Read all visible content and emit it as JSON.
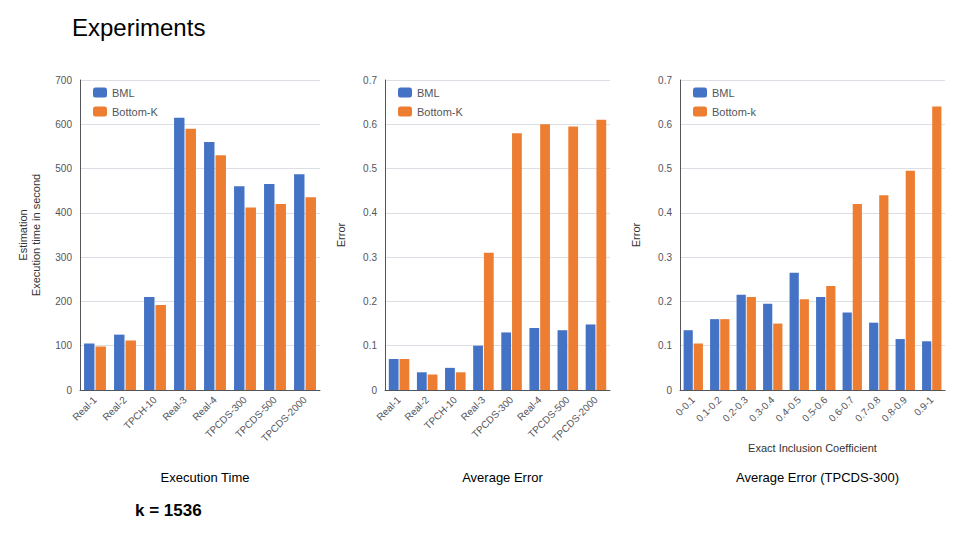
{
  "title": "Experiments",
  "chart_data": [
    {
      "type": "bar",
      "title": "Execution Time",
      "annotations": [
        "k = 1536"
      ],
      "categories": [
        "Real-1",
        "Real-2",
        "TPCH-10",
        "Real-3",
        "Real-4",
        "TPCDS-300",
        "TPCDS-500",
        "TPCDS-2000"
      ],
      "series": [
        {
          "name": "BML",
          "color": "#4472C4",
          "values": [
            105,
            125,
            210,
            615,
            560,
            460,
            465,
            487
          ]
        },
        {
          "name": "Bottom-K",
          "color": "#ED7D31",
          "values": [
            98,
            112,
            192,
            590,
            530,
            412,
            420,
            435
          ]
        }
      ],
      "ylabel": "Estimation\nExecution time in second",
      "ylim": [
        0,
        700
      ],
      "yticks": [
        0,
        100,
        200,
        300,
        400,
        500,
        600,
        700
      ],
      "grid": true,
      "legend": "upper left"
    },
    {
      "type": "bar",
      "title": "Average Error",
      "categories": [
        "Real-1",
        "Real-2",
        "TPCH-10",
        "Real-3",
        "TPCDS-300",
        "Real-4",
        "TPCDS-500",
        "TPCDS-2000"
      ],
      "series": [
        {
          "name": "BML",
          "color": "#4472C4",
          "values": [
            0.07,
            0.04,
            0.05,
            0.1,
            0.13,
            0.14,
            0.135,
            0.148
          ]
        },
        {
          "name": "Bottom-K",
          "color": "#ED7D31",
          "values": [
            0.07,
            0.035,
            0.04,
            0.31,
            0.58,
            0.6,
            0.595,
            0.61
          ]
        }
      ],
      "ylabel": "Error",
      "ylim": [
        0,
        0.7
      ],
      "yticks": [
        0,
        0.1,
        0.2,
        0.3,
        0.4,
        0.5,
        0.6,
        0.7
      ],
      "grid": true,
      "legend": "upper left"
    },
    {
      "type": "bar",
      "title": "Average Error (TPCDS-300)",
      "categories": [
        "0-0.1",
        "0.1-0.2",
        "0.2-0.3",
        "0.3-0.4",
        "0.4-0.5",
        "0.5-0.6",
        "0.6-0.7",
        "0.7-0.8",
        "0.8-0.9",
        "0.9-1"
      ],
      "series": [
        {
          "name": "BML",
          "color": "#4472C4",
          "values": [
            0.135,
            0.16,
            0.215,
            0.195,
            0.265,
            0.21,
            0.175,
            0.152,
            0.115,
            0.11
          ]
        },
        {
          "name": "Bottom-k",
          "color": "#ED7D31",
          "values": [
            0.105,
            0.16,
            0.21,
            0.15,
            0.205,
            0.235,
            0.42,
            0.44,
            0.495,
            0.64
          ]
        }
      ],
      "xlabel": "Exact Inclusion Coefficient",
      "ylabel": "Error",
      "ylim": [
        0,
        0.7
      ],
      "yticks": [
        0,
        0.1,
        0.2,
        0.3,
        0.4,
        0.5,
        0.6,
        0.7
      ],
      "grid": true,
      "legend": "upper left"
    }
  ]
}
